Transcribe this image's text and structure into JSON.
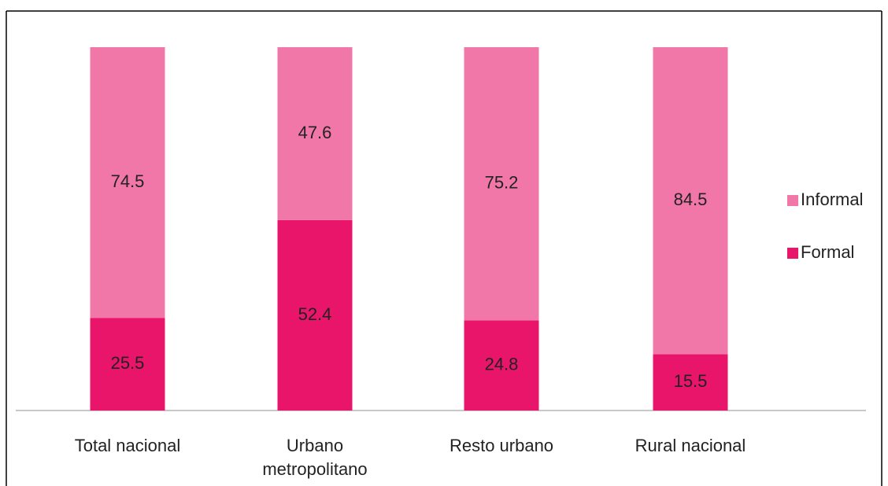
{
  "chart_data": {
    "type": "stacked_bar",
    "categories": [
      "Total nacional",
      "Urbano metropolitano",
      "Resto urbano",
      "Rural nacional"
    ],
    "series": [
      {
        "name": "Formal",
        "color": "#e8156b",
        "values": [
          25.5,
          52.4,
          24.8,
          15.5
        ]
      },
      {
        "name": "Informal",
        "color": "#f277a9",
        "values": [
          74.5,
          47.6,
          75.2,
          84.5
        ]
      }
    ],
    "ylim": [
      0,
      100
    ],
    "legend": "right"
  }
}
